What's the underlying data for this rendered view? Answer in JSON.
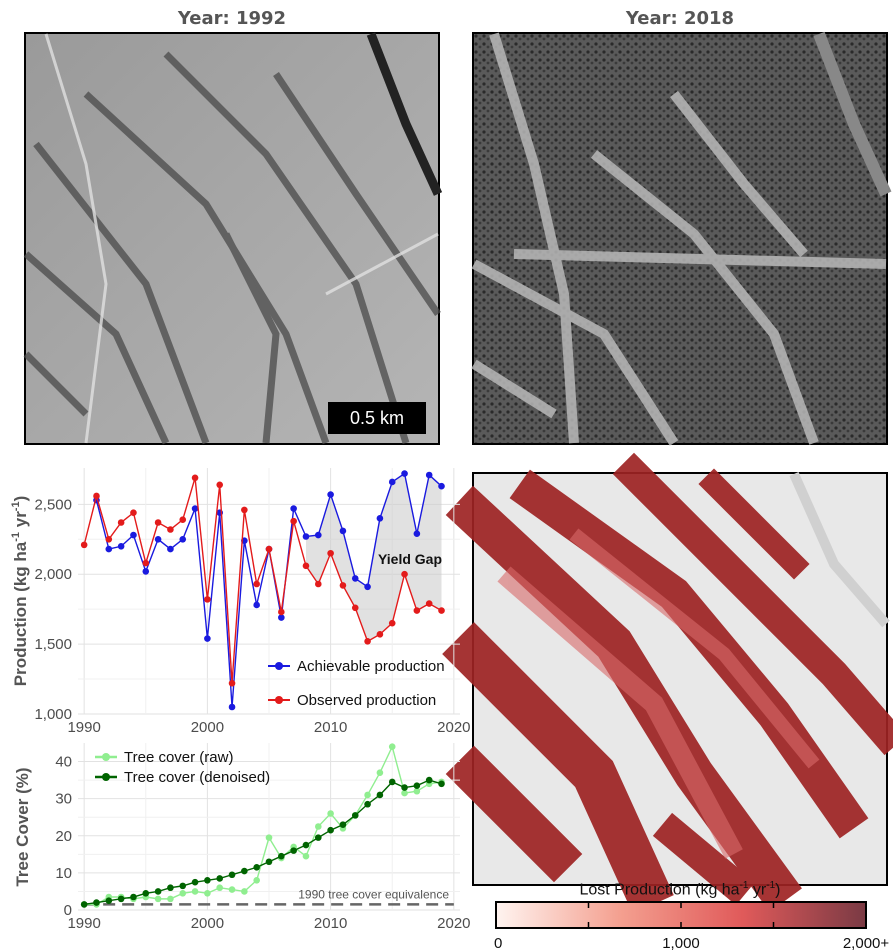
{
  "panels": {
    "left_title": "Year: 1992",
    "right_title": "Year: 2018",
    "scale_label": "0.5 km",
    "gap_label": "Yield Gap",
    "baseline_label": "1990 tree cover equivalence",
    "colorbar": {
      "title_main": "Lost Production (kg ha",
      "title_sup1": "-1",
      "title_mid": " yr",
      "title_sup2": "-1",
      "title_end": ")",
      "ticks": [
        0,
        1000,
        2000
      ],
      "tick_labels": [
        "0",
        "1,000",
        "2,000+"
      ],
      "colors": [
        "#fff4f0",
        "#f4a090",
        "#e05a5a",
        "#7a3a44"
      ]
    }
  },
  "chart_data": [
    {
      "type": "line",
      "ylabel": "Production (kg ha-1 yr-1)",
      "ylabel_parts": [
        "Production (kg ha",
        "-1",
        " yr",
        "-1",
        ")"
      ],
      "xlim": [
        1989.5,
        2020.5
      ],
      "ylim": [
        1000,
        2760
      ],
      "xticks": [
        1990,
        2000,
        2010,
        2020
      ],
      "yticks": [
        1000,
        1500,
        2000,
        2500
      ],
      "ytick_labels": [
        "1,000",
        "1,500",
        "2,000",
        "2,500"
      ],
      "grid": true,
      "legend_position": "bottom-right",
      "x": [
        1990,
        1991,
        1992,
        1993,
        1994,
        1995,
        1996,
        1997,
        1998,
        1999,
        2000,
        2001,
        2002,
        2003,
        2004,
        2005,
        2006,
        2007,
        2008,
        2009,
        2010,
        2011,
        2012,
        2013,
        2014,
        2015,
        2016,
        2017,
        2018,
        2019,
        2020
      ],
      "series": [
        {
          "name": "Achievable production",
          "color": "#1a1adf",
          "values": [
            null,
            2530,
            2180,
            2200,
            2280,
            2020,
            2250,
            2180,
            2250,
            2470,
            1540,
            2440,
            1050,
            2240,
            1780,
            2180,
            1690,
            2470,
            2270,
            2280,
            2570,
            2310,
            1970,
            1910,
            2400,
            2660,
            2720,
            2290,
            2710,
            2630,
            null
          ]
        },
        {
          "name": "Observed production",
          "color": "#e31b1b",
          "values": [
            2210,
            2560,
            2250,
            2370,
            2440,
            2080,
            2370,
            2320,
            2390,
            2690,
            1820,
            2640,
            1220,
            2460,
            1930,
            2180,
            1730,
            2380,
            2060,
            1930,
            2150,
            1920,
            1760,
            1520,
            1570,
            1650,
            2000,
            1740,
            1790,
            1740,
            null
          ]
        }
      ]
    },
    {
      "type": "line",
      "ylabel": "Tree Cover (%)",
      "xlim": [
        1989.5,
        2020.5
      ],
      "ylim": [
        0,
        45
      ],
      "xticks": [
        1990,
        2000,
        2010,
        2020
      ],
      "yticks": [
        0,
        10,
        20,
        30,
        40
      ],
      "grid": true,
      "legend_position": "top-left",
      "x": [
        1990,
        1991,
        1992,
        1993,
        1994,
        1995,
        1996,
        1997,
        1998,
        1999,
        2000,
        2001,
        2002,
        2003,
        2004,
        2005,
        2006,
        2007,
        2008,
        2009,
        2010,
        2011,
        2012,
        2013,
        2014,
        2015,
        2016,
        2017,
        2018,
        2019
      ],
      "series": [
        {
          "name": "Tree cover (raw)",
          "color": "#90ee90",
          "values": [
            1.5,
            1.5,
            3.5,
            3.5,
            3,
            3.5,
            3,
            3,
            4.5,
            5,
            4.5,
            6,
            5.5,
            5,
            8,
            19.5,
            14,
            17,
            14.5,
            22.5,
            26,
            22,
            25.5,
            31,
            37,
            44,
            31.5,
            32,
            34,
            34.5
          ]
        },
        {
          "name": "Tree cover (denoised)",
          "color": "#006400",
          "values": [
            1.5,
            2,
            2.5,
            3,
            3.5,
            4.5,
            5,
            6,
            6.5,
            7.5,
            8,
            8.5,
            9.5,
            10.5,
            11.5,
            13,
            14.5,
            16,
            17.5,
            19.5,
            21.5,
            23,
            25.5,
            28.5,
            31,
            34.5,
            33,
            33.5,
            35,
            34
          ]
        }
      ],
      "baseline": 1.5
    }
  ]
}
